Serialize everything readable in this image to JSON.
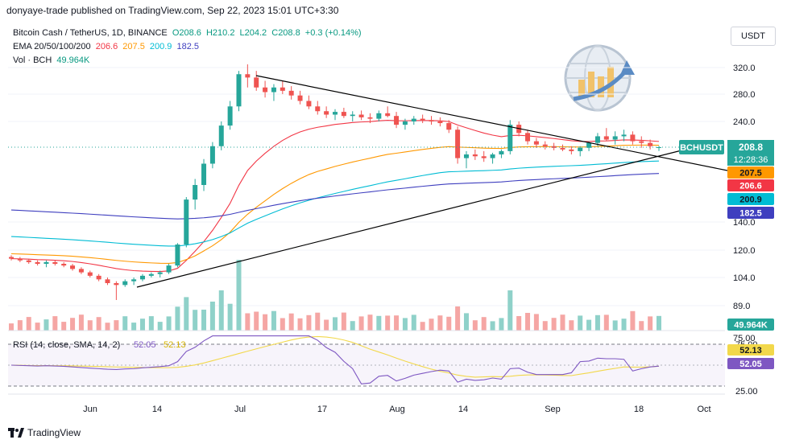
{
  "header": {
    "publisher": "donyaye-trade published on TradingView.com, Sep 22, 2023 15:01 UTC+3:30"
  },
  "legend": {
    "symbol": "Bitcoin Cash / TetherUS, 1D, BINANCE",
    "open": "O208.6",
    "high": "H210.2",
    "low": "L204.2",
    "close": "C208.8",
    "change": "+0.3 (+0.14%)",
    "ema_label": "EMA 20/50/100/200",
    "ema20": "206.6",
    "ema50": "207.5",
    "ema100": "200.9",
    "ema200": "182.5",
    "vol_label": "Vol · BCH",
    "vol_value": "49.964K",
    "rsi_label": "RSI (14, close, SMA, 14, 2)",
    "rsi_value": "52.05",
    "rsi_sma_value": "52.13"
  },
  "toolbar": {
    "currency": "USDT"
  },
  "price_axis": {
    "ticks": [
      "320.0",
      "280.0",
      "240.0",
      "140.0",
      "120.0",
      "104.0",
      "89.0",
      "75.00"
    ],
    "labels": {
      "symbol": "BCHUSDT",
      "price": "208.8",
      "countdown": "12:28:36",
      "ema50": "207.5",
      "ema20": "206.6",
      "ema100": "200.9",
      "ema200": "182.5",
      "volume": "49.964K"
    }
  },
  "rsi_axis": {
    "ticks": [
      "75.00",
      "25.00"
    ],
    "sma_label": "52.13",
    "rsi_label": "52.05"
  },
  "time_axis": {
    "ticks": [
      "Jun",
      "14",
      "Jul",
      "17",
      "Aug",
      "14",
      "Sep",
      "18",
      "Oct"
    ]
  },
  "colors": {
    "up": "#26a69a",
    "down": "#ef5350",
    "ema20": "#f23645",
    "ema50": "#ff9800",
    "ema100": "#00bcd4",
    "ema200": "#3f3fbf",
    "rsi": "#7e57c2",
    "rsi_sma": "#f2d84b",
    "trendline": "#000000"
  },
  "branding": {
    "name": "TradingView"
  },
  "chart_data": {
    "type": "candlestick",
    "symbol": "BCHUSDT",
    "interval": "1D",
    "last_price": 208.8,
    "ohlc_last": {
      "open": 208.6,
      "high": 210.2,
      "low": 204.2,
      "close": 208.8
    },
    "ema": {
      "ema20": 206.6,
      "ema50": 207.5,
      "ema100": 200.9,
      "ema200": 182.5
    },
    "volume_last": "49.964K",
    "rsi": {
      "value": 52.05,
      "sma": 52.13,
      "bands": [
        75,
        25
      ]
    },
    "candles_approx": [
      [
        116,
        117,
        114,
        115
      ],
      [
        115,
        116,
        113,
        114
      ],
      [
        114,
        115,
        112,
        113
      ],
      [
        113,
        114,
        111,
        112
      ],
      [
        112,
        114,
        110,
        113
      ],
      [
        113,
        114,
        111,
        112
      ],
      [
        112,
        113,
        110,
        111
      ],
      [
        111,
        112,
        108,
        109
      ],
      [
        109,
        110,
        106,
        107
      ],
      [
        107,
        108,
        104,
        105
      ],
      [
        105,
        106,
        102,
        103
      ],
      [
        103,
        104,
        100,
        101
      ],
      [
        101,
        102,
        92,
        100
      ],
      [
        100,
        103,
        99,
        102
      ],
      [
        102,
        104,
        100,
        103
      ],
      [
        103,
        106,
        102,
        105
      ],
      [
        105,
        107,
        104,
        106
      ],
      [
        106,
        108,
        104,
        107
      ],
      [
        107,
        112,
        106,
        111
      ],
      [
        111,
        125,
        110,
        124
      ],
      [
        124,
        160,
        122,
        158
      ],
      [
        158,
        175,
        150,
        170
      ],
      [
        170,
        195,
        165,
        190
      ],
      [
        190,
        215,
        185,
        210
      ],
      [
        210,
        240,
        205,
        235
      ],
      [
        235,
        270,
        230,
        262
      ],
      [
        262,
        315,
        255,
        310
      ],
      [
        310,
        325,
        290,
        305
      ],
      [
        305,
        315,
        285,
        290
      ],
      [
        290,
        300,
        275,
        283
      ],
      [
        283,
        295,
        270,
        290
      ],
      [
        290,
        300,
        280,
        285
      ],
      [
        285,
        292,
        272,
        278
      ],
      [
        278,
        285,
        265,
        270
      ],
      [
        270,
        278,
        258,
        262
      ],
      [
        262,
        270,
        250,
        255
      ],
      [
        255,
        262,
        245,
        250
      ],
      [
        250,
        258,
        242,
        254
      ],
      [
        254,
        260,
        245,
        248
      ],
      [
        248,
        255,
        240,
        250
      ],
      [
        250,
        256,
        242,
        246
      ],
      [
        246,
        252,
        238,
        244
      ],
      [
        244,
        256,
        240,
        252
      ],
      [
        252,
        262,
        246,
        248
      ],
      [
        248,
        254,
        232,
        236
      ],
      [
        236,
        244,
        230,
        240
      ],
      [
        240,
        248,
        236,
        244
      ],
      [
        244,
        250,
        238,
        242
      ],
      [
        242,
        248,
        236,
        240
      ],
      [
        240,
        246,
        234,
        238
      ],
      [
        238,
        242,
        226,
        230
      ],
      [
        230,
        234,
        190,
        196
      ],
      [
        196,
        204,
        185,
        200
      ],
      [
        200,
        206,
        194,
        198
      ],
      [
        198,
        204,
        192,
        196
      ],
      [
        196,
        202,
        190,
        200
      ],
      [
        200,
        206,
        196,
        204
      ],
      [
        204,
        242,
        200,
        236
      ],
      [
        236,
        240,
        222,
        226
      ],
      [
        226,
        230,
        212,
        216
      ],
      [
        216,
        220,
        208,
        212
      ],
      [
        212,
        216,
        206,
        210
      ],
      [
        210,
        214,
        205,
        208
      ],
      [
        208,
        212,
        204,
        206
      ],
      [
        206,
        210,
        200,
        204
      ],
      [
        204,
        210,
        198,
        208
      ],
      [
        208,
        216,
        204,
        214
      ],
      [
        214,
        226,
        210,
        222
      ],
      [
        222,
        232,
        216,
        218
      ],
      [
        218,
        228,
        212,
        222
      ],
      [
        222,
        230,
        216,
        224
      ],
      [
        224,
        228,
        212,
        216
      ],
      [
        216,
        222,
        208,
        214
      ],
      [
        214,
        218,
        206,
        210
      ],
      [
        208.6,
        210.2,
        204.2,
        208.8
      ]
    ]
  }
}
